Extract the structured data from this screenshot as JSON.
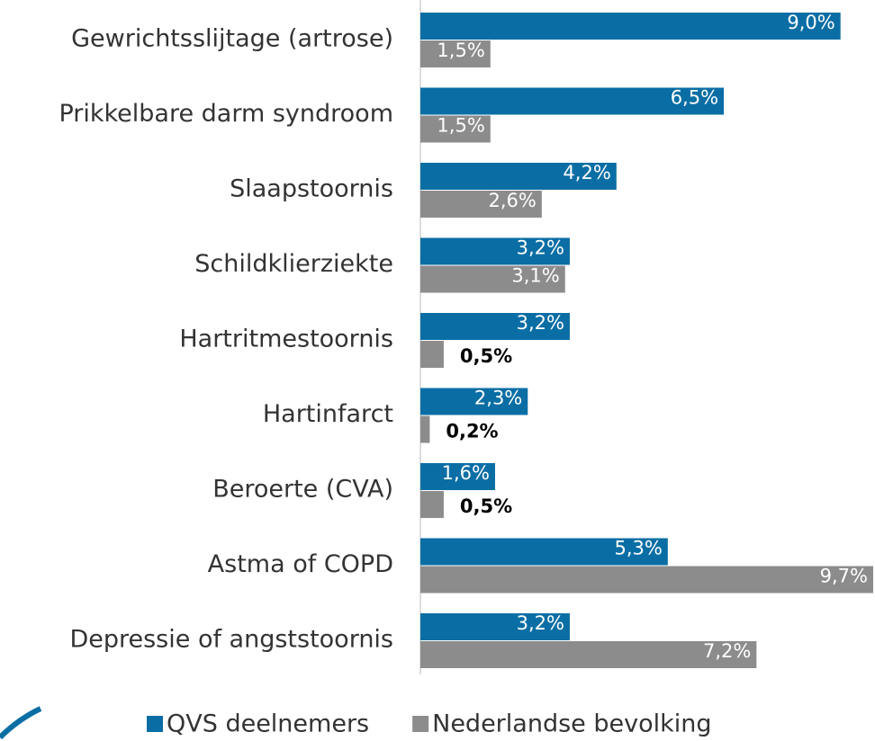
{
  "chart_data": {
    "type": "bar",
    "orientation": "horizontal",
    "categories": [
      "Gewrichtsslijtage (artrose)",
      "Prikkelbare darm syndroom",
      "Slaapstoornis",
      "Schildklierziekte",
      "Hartritmestoornis",
      "Hartinfarct",
      "Beroerte (CVA)",
      "Astma of COPD",
      "Depressie of angststoornis"
    ],
    "series": [
      {
        "name": "QVS deelnemers",
        "color": "#0a6ea5",
        "values": [
          9.0,
          6.5,
          4.2,
          3.2,
          3.2,
          2.3,
          1.6,
          5.3,
          3.2
        ],
        "value_labels": [
          "9,0%",
          "6,5%",
          "4,2%",
          "3,2%",
          "3,2%",
          "2,3%",
          "1,6%",
          "5,3%",
          "3,2%"
        ]
      },
      {
        "name": "Nederlandse bevolking",
        "color": "#8c8c8c",
        "values": [
          1.5,
          1.5,
          2.6,
          3.1,
          0.5,
          0.2,
          0.5,
          9.7,
          7.2
        ],
        "value_labels": [
          "1,5%",
          "1,5%",
          "2,6%",
          "3,1%",
          "0,5%",
          "0,2%",
          "0,5%",
          "9,7%",
          "7,2%"
        ]
      }
    ],
    "xlim": [
      0,
      9.7
    ],
    "legend": "bottom"
  }
}
